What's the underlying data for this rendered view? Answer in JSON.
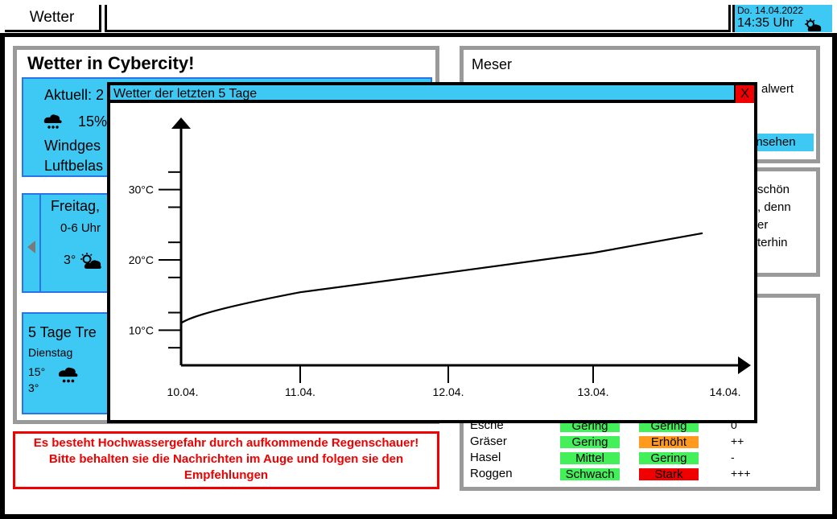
{
  "topbar": {
    "tab_label": "Wetter",
    "date": "Do. 14.04.2022",
    "time": "14:35 Uhr",
    "weather_icon": "partly-cloudy-icon"
  },
  "left": {
    "title": "Wetter in Cybercity!",
    "current": {
      "label": "Aktuell: 2",
      "rain": "15%",
      "wind": "Windges",
      "air": "Luftbelas"
    },
    "forecast": {
      "day": "Freitag,",
      "slot": "0-6 Uhr",
      "temp": "3°"
    },
    "trend": {
      "title": "5 Tage Tre",
      "day": "Dienstag",
      "hi": "15°",
      "lo": "3°"
    },
    "alert": "Es besteht Hochwassergefahr durch aufkommende Regenschauer! Bitte behalten sie die Nachrichten im Auge und folgen sie den Empfehlungen"
  },
  "right": {
    "meser_title": "Meser",
    "meser_text": "alwert",
    "meser_button": "ansehen",
    "info_lines": [
      "schön",
      ", denn",
      "er",
      "terhin"
    ],
    "pollen": [
      {
        "name": "Esche",
        "a": "Gering",
        "b": "Gering",
        "trend": "0"
      },
      {
        "name": "Gräser",
        "a": "Gering",
        "b": "Erhöht",
        "trend": "++"
      },
      {
        "name": "Hasel",
        "a": "Mittel",
        "b": "Gering",
        "trend": "-"
      },
      {
        "name": "Roggen",
        "a": "Schwach",
        "b": "Stark",
        "trend": "+++"
      }
    ]
  },
  "modal": {
    "title": "Wetter der letzten 5 Tage",
    "close": "X"
  },
  "chart_data": {
    "type": "line",
    "x": [
      "10.04.",
      "11.04.",
      "12.04.",
      "13.04.",
      "14.04."
    ],
    "y_ticks": [
      "10°C",
      "20°C",
      "30°C"
    ],
    "series": [
      {
        "values": [
          11,
          15.4,
          18.2,
          21.0,
          23.8
        ]
      }
    ],
    "ylim": [
      5,
      35
    ]
  }
}
